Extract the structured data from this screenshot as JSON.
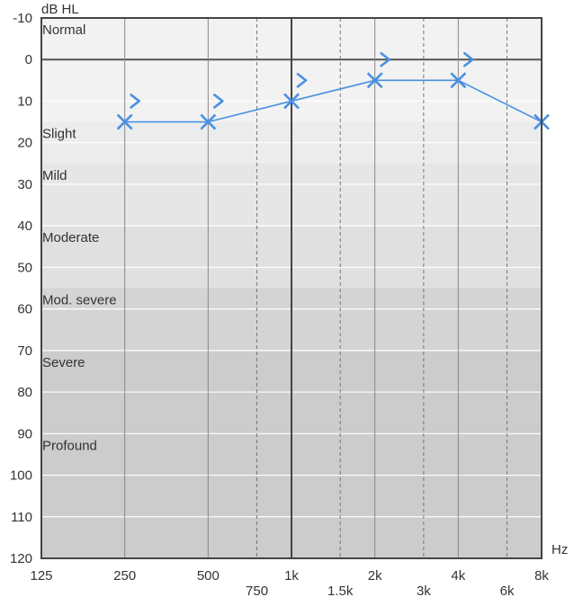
{
  "chart_data": {
    "type": "line",
    "title": "",
    "ylabel": "dB HL",
    "xlabel": "Hz",
    "ylim": [
      -10,
      120
    ],
    "y_reversed": true,
    "x_scale": "log2",
    "xlim": [
      125,
      8000
    ],
    "y_ticks": [
      "-10",
      "0",
      "10",
      "20",
      "30",
      "40",
      "50",
      "60",
      "70",
      "80",
      "90",
      "100",
      "110",
      "120"
    ],
    "x_ticks_major": [
      {
        "value": 125,
        "label": "125"
      },
      {
        "value": 250,
        "label": "250"
      },
      {
        "value": 500,
        "label": "500"
      },
      {
        "value": 1000,
        "label": "1k"
      },
      {
        "value": 2000,
        "label": "2k"
      },
      {
        "value": 4000,
        "label": "4k"
      },
      {
        "value": 8000,
        "label": "8k"
      }
    ],
    "x_ticks_minor": [
      {
        "value": 750,
        "label": "750"
      },
      {
        "value": 1500,
        "label": "1.5k"
      },
      {
        "value": 3000,
        "label": "3k"
      },
      {
        "value": 6000,
        "label": "6k"
      }
    ],
    "bands": [
      {
        "label": "Normal",
        "from": -10,
        "to": 15,
        "color": "#f2f2f2"
      },
      {
        "label": "Slight",
        "from": 15,
        "to": 25,
        "color": "#ececec"
      },
      {
        "label": "Mild",
        "from": 25,
        "to": 40,
        "color": "#e6e6e6"
      },
      {
        "label": "Moderate",
        "from": 40,
        "to": 55,
        "color": "#e0e0e0"
      },
      {
        "label": "Mod. severe",
        "from": 55,
        "to": 70,
        "color": "#d4d4d4"
      },
      {
        "label": "Severe",
        "from": 70,
        "to": 90,
        "color": "#cccccc"
      },
      {
        "label": "Profound",
        "from": 90,
        "to": 120,
        "color": "#cccccc"
      }
    ],
    "series": [
      {
        "marker": "x",
        "color": "#4a90e2",
        "x": [
          250,
          500,
          1000,
          2000,
          4000,
          8000
        ],
        "y": [
          15,
          15,
          10,
          5,
          5,
          15
        ]
      },
      {
        "marker": ">",
        "color": "#4a90e2",
        "x": [
          250,
          500,
          1000,
          2000,
          4000
        ],
        "y": [
          10,
          10,
          5,
          0,
          0
        ]
      }
    ]
  }
}
